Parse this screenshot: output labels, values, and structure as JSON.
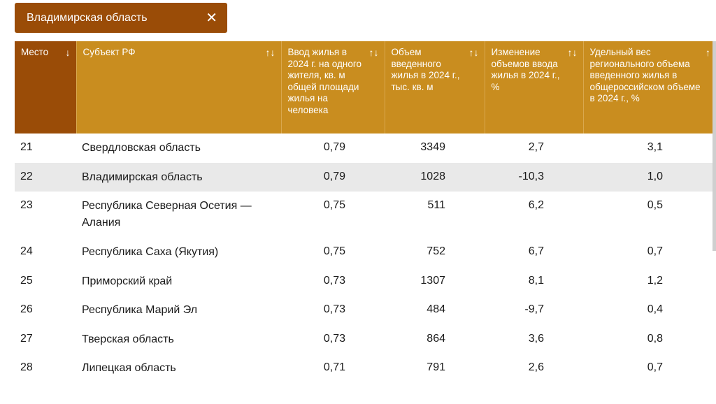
{
  "filter_chip": {
    "label": "Владимирская область",
    "close_icon": "close-icon"
  },
  "table": {
    "headers": [
      {
        "label": "Место",
        "sort": "↓"
      },
      {
        "label": "Субъект РФ",
        "sort": "↑↓"
      },
      {
        "label": "Ввод жилья в 2024 г. на одного жителя, кв. м общей площади жилья на человека",
        "sort": "↑↓"
      },
      {
        "label": "Объем введенного жилья в 2024 г., тыс. кв. м",
        "sort": "↑↓"
      },
      {
        "label": "Изменение объемов ввода жилья в 2024 г., %",
        "sort": "↑↓"
      },
      {
        "label": "Удельный вес регионального объема введенного жилья в общероссийском объеме в 2024 г., %",
        "sort": "↑"
      }
    ],
    "rows": [
      {
        "rank": "21",
        "region": "Свердловская область",
        "per_capita": "0,79",
        "volume": "3349",
        "change": "2,7",
        "share": "3,1"
      },
      {
        "rank": "22",
        "region": "Владимирская область",
        "per_capita": "0,79",
        "volume": "1028",
        "change": "-10,3",
        "share": "1,0"
      },
      {
        "rank": "23",
        "region": "Республика Северная Осетия — Алания",
        "per_capita": "0,75",
        "volume": "511",
        "change": "6,2",
        "share": "0,5"
      },
      {
        "rank": "24",
        "region": "Республика Саха (Якутия)",
        "per_capita": "0,75",
        "volume": "752",
        "change": "6,7",
        "share": "0,7"
      },
      {
        "rank": "25",
        "region": "Приморский край",
        "per_capita": "0,73",
        "volume": "1307",
        "change": "8,1",
        "share": "1,2"
      },
      {
        "rank": "26",
        "region": "Республика Марий Эл",
        "per_capita": "0,73",
        "volume": "484",
        "change": "-9,7",
        "share": "0,4"
      },
      {
        "rank": "27",
        "region": "Тверская область",
        "per_capita": "0,73",
        "volume": "864",
        "change": "3,6",
        "share": "0,8"
      },
      {
        "rank": "28",
        "region": "Липецкая область",
        "per_capita": "0,71",
        "volume": "791",
        "change": "2,6",
        "share": "0,7"
      }
    ],
    "highlight_row": 1,
    "colors": {
      "header": "#c98d1f",
      "header_sorted": "#9a4c07",
      "highlight": "#e9e9e9"
    }
  }
}
